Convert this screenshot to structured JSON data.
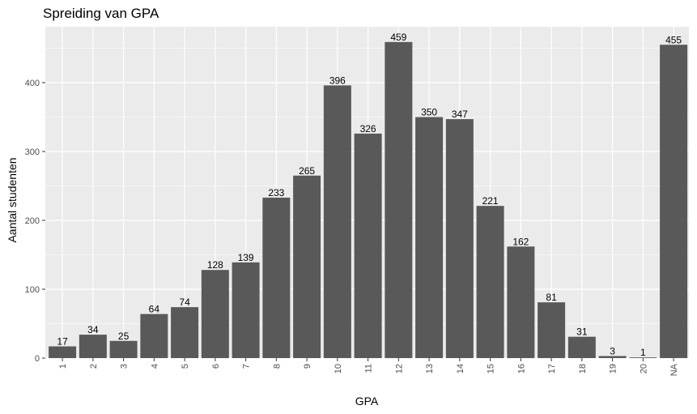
{
  "chart_data": {
    "type": "bar",
    "title": "Spreiding van GPA",
    "xlabel": "GPA",
    "ylabel": "Aantal studenten",
    "categories": [
      "1",
      "2",
      "3",
      "4",
      "5",
      "6",
      "7",
      "8",
      "9",
      "10",
      "11",
      "12",
      "13",
      "14",
      "15",
      "16",
      "17",
      "18",
      "19",
      "20",
      "NA"
    ],
    "values": [
      17,
      34,
      25,
      64,
      74,
      128,
      139,
      233,
      265,
      396,
      326,
      459,
      350,
      347,
      221,
      162,
      81,
      31,
      3,
      1,
      455
    ],
    "ylim": [
      0,
      482
    ],
    "yticks": [
      0,
      100,
      200,
      300,
      400
    ],
    "grid": true,
    "bar_labels": true
  },
  "colors": {
    "panel_background": "#ebebeb",
    "grid_major": "#ffffff",
    "bar_fill": "#595959"
  }
}
